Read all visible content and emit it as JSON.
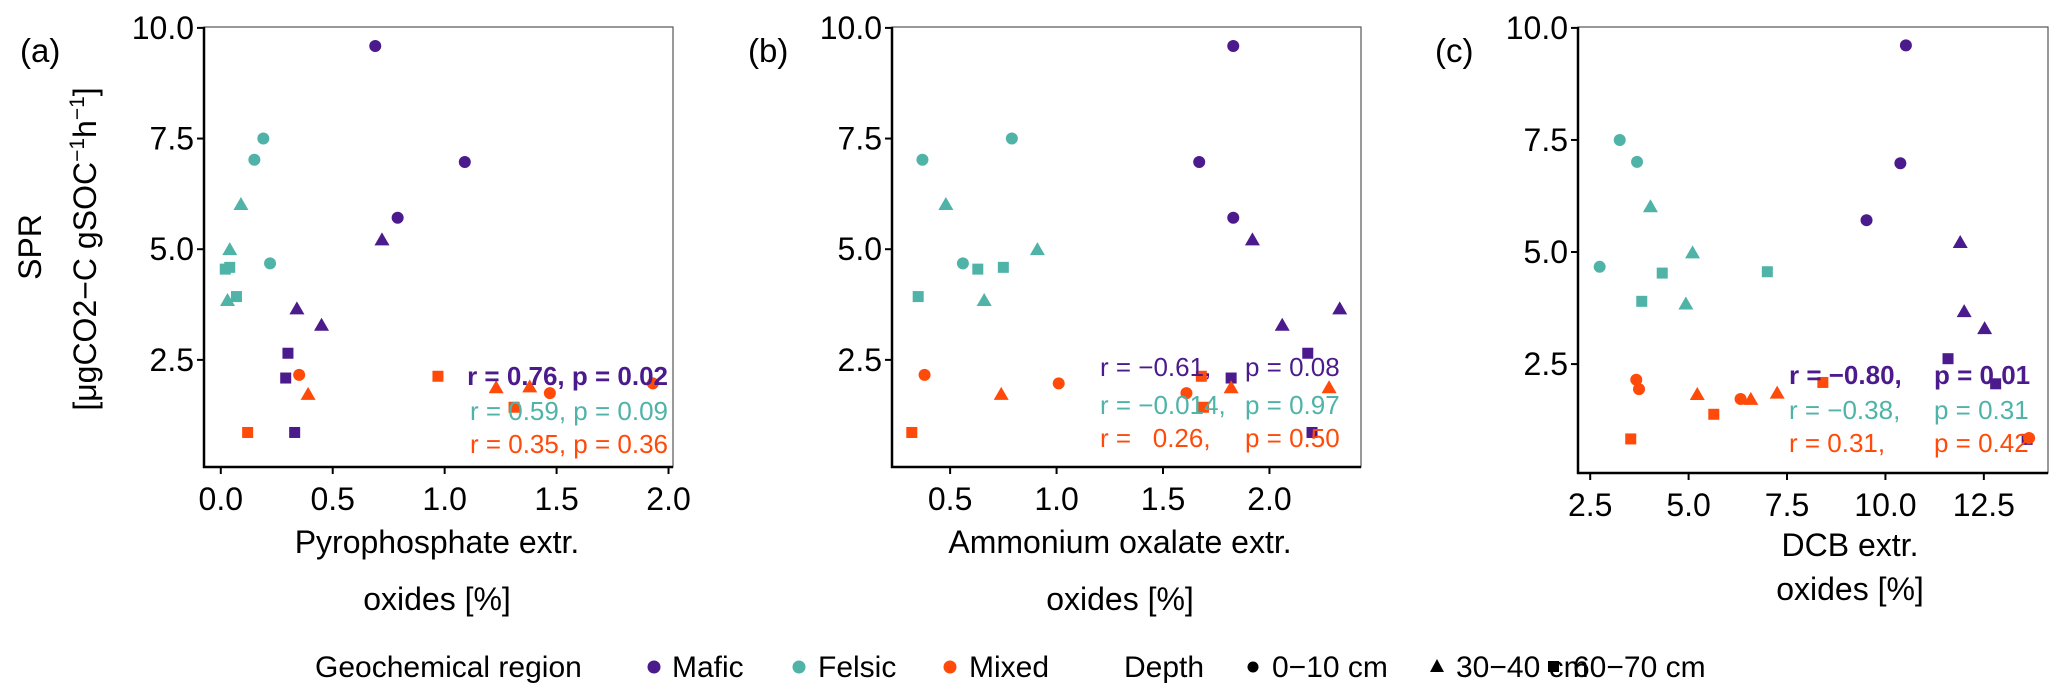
{
  "colors": {
    "Mafic": "#4b1a8c",
    "Felsic": "#4fb3a8",
    "Mixed": "#ff4a0a",
    "axis": "#000000",
    "frame": "#555555"
  },
  "y_axis": {
    "line1": "SPR",
    "line2_parts": [
      "[μgCO2−C gSOC",
      "−1",
      "h",
      "−1",
      "]"
    ]
  },
  "legend": {
    "region_title": "Geochemical region",
    "regions": [
      {
        "key": "Mafic",
        "label": "Mafic"
      },
      {
        "key": "Felsic",
        "label": "Felsic"
      },
      {
        "key": "Mixed",
        "label": "Mixed"
      }
    ],
    "depth_title": "Depth",
    "depths": [
      {
        "shape": "circle",
        "label": "0−10 cm"
      },
      {
        "shape": "triangle",
        "label": "30−40 cm"
      },
      {
        "shape": "square",
        "label": "60−70 cm"
      }
    ]
  },
  "chart_data": [
    {
      "type": "scatter",
      "panel_label": "(a)",
      "xlabel": [
        "Pyrophosphate extr.",
        "oxides [%]"
      ],
      "ylabel": "SPR [μgCO2−C gSOC−1h−1]",
      "xlim": [
        -0.075,
        2.02
      ],
      "ylim": [
        0.08,
        10.02
      ],
      "xticks": [
        0.0,
        0.5,
        1.0,
        1.5,
        2.0
      ],
      "xtick_labels": [
        "0.0",
        "0.5",
        "1.0",
        "1.5",
        "2.0"
      ],
      "yticks": [
        2.5,
        5.0,
        7.5,
        10.0
      ],
      "ytick_labels": [
        "2.5",
        "5.0",
        "7.5",
        "10.0"
      ],
      "series": [
        {
          "name": "Mafic",
          "points": [
            {
              "x": 0.69,
              "y": 9.59,
              "depth": "circle"
            },
            {
              "x": 1.09,
              "y": 6.97,
              "depth": "circle"
            },
            {
              "x": 0.79,
              "y": 5.71,
              "depth": "circle"
            },
            {
              "x": 0.72,
              "y": 5.2,
              "depth": "triangle"
            },
            {
              "x": 0.34,
              "y": 3.64,
              "depth": "triangle"
            },
            {
              "x": 0.45,
              "y": 3.27,
              "depth": "triangle"
            },
            {
              "x": 0.3,
              "y": 2.65,
              "depth": "square"
            },
            {
              "x": 0.29,
              "y": 2.09,
              "depth": "square"
            },
            {
              "x": 0.33,
              "y": 0.86,
              "depth": "square"
            }
          ]
        },
        {
          "name": "Felsic",
          "points": [
            {
              "x": 0.19,
              "y": 7.5,
              "depth": "circle"
            },
            {
              "x": 0.15,
              "y": 7.02,
              "depth": "circle"
            },
            {
              "x": 0.22,
              "y": 4.68,
              "depth": "circle"
            },
            {
              "x": 0.09,
              "y": 6.0,
              "depth": "triangle"
            },
            {
              "x": 0.04,
              "y": 4.98,
              "depth": "triangle"
            },
            {
              "x": 0.03,
              "y": 3.83,
              "depth": "triangle"
            },
            {
              "x": 0.04,
              "y": 4.59,
              "depth": "square"
            },
            {
              "x": 0.02,
              "y": 4.55,
              "depth": "square"
            },
            {
              "x": 0.07,
              "y": 3.93,
              "depth": "square"
            }
          ]
        },
        {
          "name": "Mixed",
          "points": [
            {
              "x": 0.35,
              "y": 2.16,
              "depth": "circle"
            },
            {
              "x": 1.47,
              "y": 1.75,
              "depth": "circle"
            },
            {
              "x": 1.93,
              "y": 1.97,
              "depth": "circle"
            },
            {
              "x": 0.39,
              "y": 1.71,
              "depth": "triangle"
            },
            {
              "x": 1.23,
              "y": 1.86,
              "depth": "triangle"
            },
            {
              "x": 1.38,
              "y": 1.88,
              "depth": "triangle"
            },
            {
              "x": 0.12,
              "y": 0.86,
              "depth": "square"
            },
            {
              "x": 0.97,
              "y": 2.13,
              "depth": "square"
            },
            {
              "x": 1.31,
              "y": 1.43,
              "depth": "square"
            }
          ]
        }
      ],
      "annotations": [
        {
          "series": "Mafic",
          "text": "r = 0.76, p = 0.02",
          "bold": true
        },
        {
          "series": "Felsic",
          "text": "r = 0.59, p = 0.09",
          "bold": false
        },
        {
          "series": "Mixed",
          "text": "r = 0.35, p = 0.36",
          "bold": false
        }
      ]
    },
    {
      "type": "scatter",
      "panel_label": "(b)",
      "xlabel": [
        "Ammonium oxalate extr.",
        "oxides [%]"
      ],
      "ylabel": "SPR [μgCO2−C gSOC−1h−1]",
      "xlim": [
        0.227,
        2.43
      ],
      "ylim": [
        0.08,
        10.02
      ],
      "xticks": [
        0.5,
        1.0,
        1.5,
        2.0
      ],
      "xtick_labels": [
        "0.5",
        "1.0",
        "1.5",
        "2.0"
      ],
      "yticks": [
        2.5,
        5.0,
        7.5,
        10.0
      ],
      "ytick_labels": [
        "2.5",
        "5.0",
        "7.5",
        "10.0"
      ],
      "series": [
        {
          "name": "Mafic",
          "points": [
            {
              "x": 1.83,
              "y": 9.59,
              "depth": "circle"
            },
            {
              "x": 1.67,
              "y": 6.97,
              "depth": "circle"
            },
            {
              "x": 1.83,
              "y": 5.71,
              "depth": "circle"
            },
            {
              "x": 1.92,
              "y": 5.2,
              "depth": "triangle"
            },
            {
              "x": 2.06,
              "y": 3.27,
              "depth": "triangle"
            },
            {
              "x": 2.33,
              "y": 3.64,
              "depth": "triangle"
            },
            {
              "x": 2.18,
              "y": 2.65,
              "depth": "square"
            },
            {
              "x": 1.82,
              "y": 2.09,
              "depth": "square"
            },
            {
              "x": 2.2,
              "y": 0.86,
              "depth": "square"
            }
          ]
        },
        {
          "name": "Felsic",
          "points": [
            {
              "x": 0.79,
              "y": 7.5,
              "depth": "circle"
            },
            {
              "x": 0.37,
              "y": 7.02,
              "depth": "circle"
            },
            {
              "x": 0.56,
              "y": 4.68,
              "depth": "circle"
            },
            {
              "x": 0.48,
              "y": 6.0,
              "depth": "triangle"
            },
            {
              "x": 0.91,
              "y": 4.98,
              "depth": "triangle"
            },
            {
              "x": 0.66,
              "y": 3.83,
              "depth": "triangle"
            },
            {
              "x": 0.63,
              "y": 4.55,
              "depth": "square"
            },
            {
              "x": 0.75,
              "y": 4.59,
              "depth": "square"
            },
            {
              "x": 0.35,
              "y": 3.93,
              "depth": "square"
            }
          ]
        },
        {
          "name": "Mixed",
          "points": [
            {
              "x": 0.38,
              "y": 2.16,
              "depth": "circle"
            },
            {
              "x": 1.01,
              "y": 1.97,
              "depth": "circle"
            },
            {
              "x": 1.61,
              "y": 1.75,
              "depth": "circle"
            },
            {
              "x": 0.74,
              "y": 1.71,
              "depth": "triangle"
            },
            {
              "x": 1.82,
              "y": 1.86,
              "depth": "triangle"
            },
            {
              "x": 2.28,
              "y": 1.86,
              "depth": "triangle"
            },
            {
              "x": 0.32,
              "y": 0.86,
              "depth": "square"
            },
            {
              "x": 1.68,
              "y": 2.13,
              "depth": "square"
            },
            {
              "x": 1.69,
              "y": 1.43,
              "depth": "square"
            }
          ]
        }
      ],
      "annotations": [
        {
          "series": "Mafic",
          "r_text": "r = −0.61,",
          "p_text": "p = 0.08",
          "bold": false
        },
        {
          "series": "Felsic",
          "r_text": "r = −0.014,",
          "p_text": "p = 0.97",
          "bold": false
        },
        {
          "series": "Mixed",
          "r_text": "r =   0.26,",
          "p_text": "p = 0.50",
          "bold": false
        }
      ]
    },
    {
      "type": "scatter",
      "panel_label": "(c)",
      "xlabel": [
        "DCB extr.",
        "oxides [%]"
      ],
      "ylabel": "SPR [μgCO2−C gSOC−1h−1]",
      "xlim": [
        2.19,
        14.13
      ],
      "ylim": [
        0.07,
        10.02
      ],
      "xticks": [
        2.5,
        5.0,
        7.5,
        10.0,
        12.5
      ],
      "xtick_labels": [
        "2.5",
        "5.0",
        "7.5",
        "10.0",
        "12.5"
      ],
      "yticks": [
        2.5,
        5.0,
        7.5,
        10.0
      ],
      "ytick_labels": [
        "2.5",
        "5.0",
        "7.5",
        "10.0"
      ],
      "series": [
        {
          "name": "Mafic",
          "points": [
            {
              "x": 10.52,
              "y": 9.61,
              "depth": "circle"
            },
            {
              "x": 10.38,
              "y": 6.98,
              "depth": "circle"
            },
            {
              "x": 9.52,
              "y": 5.71,
              "depth": "circle"
            },
            {
              "x": 11.9,
              "y": 5.2,
              "depth": "triangle"
            },
            {
              "x": 12.0,
              "y": 3.66,
              "depth": "triangle"
            },
            {
              "x": 12.52,
              "y": 3.28,
              "depth": "triangle"
            },
            {
              "x": 11.59,
              "y": 2.62,
              "depth": "square"
            },
            {
              "x": 12.8,
              "y": 2.06,
              "depth": "square"
            },
            {
              "x": 13.6,
              "y": 0.82,
              "depth": "square"
            }
          ]
        },
        {
          "name": "Felsic",
          "points": [
            {
              "x": 3.25,
              "y": 7.5,
              "depth": "circle"
            },
            {
              "x": 3.69,
              "y": 7.01,
              "depth": "circle"
            },
            {
              "x": 2.74,
              "y": 4.67,
              "depth": "circle"
            },
            {
              "x": 4.03,
              "y": 6.0,
              "depth": "triangle"
            },
            {
              "x": 5.1,
              "y": 4.97,
              "depth": "triangle"
            },
            {
              "x": 4.93,
              "y": 3.83,
              "depth": "triangle"
            },
            {
              "x": 4.33,
              "y": 4.53,
              "depth": "square"
            },
            {
              "x": 7.0,
              "y": 4.56,
              "depth": "square"
            },
            {
              "x": 3.81,
              "y": 3.9,
              "depth": "square"
            }
          ]
        },
        {
          "name": "Mixed",
          "points": [
            {
              "x": 3.67,
              "y": 2.15,
              "depth": "circle"
            },
            {
              "x": 3.74,
              "y": 1.94,
              "depth": "circle"
            },
            {
              "x": 6.32,
              "y": 1.72,
              "depth": "circle"
            },
            {
              "x": 5.22,
              "y": 1.81,
              "depth": "triangle"
            },
            {
              "x": 6.58,
              "y": 1.7,
              "depth": "triangle"
            },
            {
              "x": 7.25,
              "y": 1.84,
              "depth": "triangle"
            },
            {
              "x": 3.53,
              "y": 0.83,
              "depth": "square"
            },
            {
              "x": 5.64,
              "y": 1.38,
              "depth": "square"
            },
            {
              "x": 8.41,
              "y": 2.09,
              "depth": "square"
            },
            {
              "x": 13.65,
              "y": 0.85,
              "depth": "circle"
            }
          ]
        }
      ],
      "annotations": [
        {
          "series": "Mafic",
          "r_text": "r = −0.80,",
          "p_text": "p = 0.01",
          "bold": true
        },
        {
          "series": "Felsic",
          "r_text": "r = −0.38,",
          "p_text": "p = 0.31",
          "bold": false
        },
        {
          "series": "Mixed",
          "r_text": "r = 0.31,",
          "p_text": "p = 0.42",
          "bold": false
        }
      ]
    }
  ]
}
